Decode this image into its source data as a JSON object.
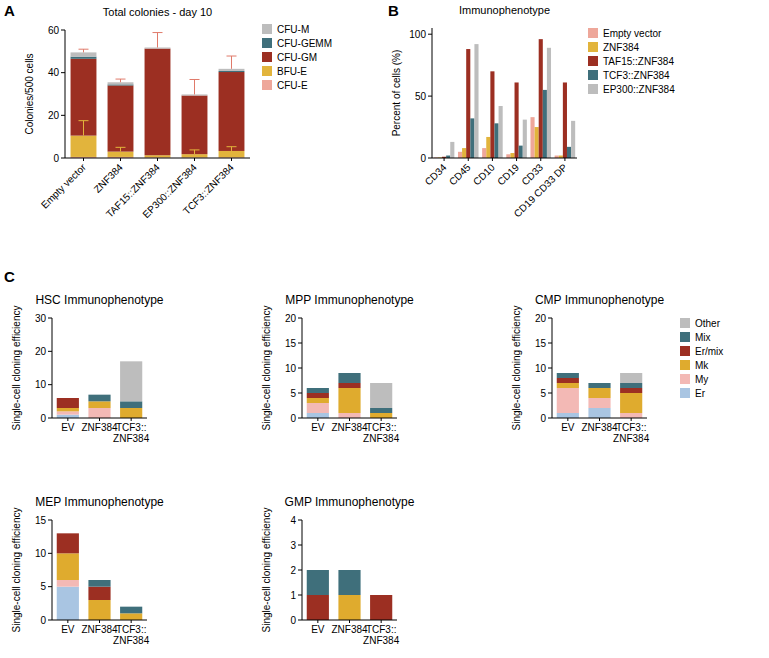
{
  "chart_data": [
    {
      "type": "bar",
      "stacked": true,
      "panel_label": "A",
      "title": "Total colonies - day 10",
      "y_label": "Colonies/500 cells",
      "categories": [
        "Empty vector",
        "ZNF384",
        "TAF15::ZNF384",
        "EP300::ZNF384",
        "TCF3::ZNF384"
      ],
      "ylim": [
        0,
        60
      ],
      "yticks": [
        0,
        20,
        40,
        60
      ],
      "legend": "right",
      "series": [
        {
          "name": "CFU-E",
          "color": "#eea79a",
          "values": [
            0.5,
            0.5,
            0.3,
            0.3,
            0.3
          ]
        },
        {
          "name": "BFU-E",
          "color": "#e2b43c",
          "values": [
            10,
            2.5,
            1,
            1.5,
            3
          ],
          "errors": [
            7,
            2,
            null,
            2,
            2
          ]
        },
        {
          "name": "CFU-GM",
          "color": "#9c2f22",
          "values": [
            36,
            31,
            50,
            27.5,
            37
          ]
        },
        {
          "name": "CFU-GEMM",
          "color": "#3f6f7b",
          "values": [
            1,
            0.5,
            0,
            0,
            0.5
          ]
        },
        {
          "name": "CFU-M",
          "color": "#bdbdbd",
          "values": [
            2,
            1,
            0.5,
            0.5,
            1
          ],
          "errors": [
            1.5,
            1.5,
            7,
            7,
            6
          ]
        }
      ]
    },
    {
      "type": "bar",
      "panel_label": "B",
      "title": "Immunophenotype",
      "y_label": "Percent of cells (%)",
      "categories": [
        "CD34",
        "CD45",
        "CD10",
        "CD19",
        "CD33",
        "CD19 CD33 DP"
      ],
      "ylim": [
        0,
        105
      ],
      "yticks": [
        0,
        50,
        100
      ],
      "legend": "right",
      "series": [
        {
          "name": "Empty vector",
          "color": "#eea79a",
          "values": [
            0.5,
            5,
            8,
            3,
            33,
            2
          ]
        },
        {
          "name": "ZNF384",
          "color": "#e2b43c",
          "values": [
            0.5,
            8,
            17,
            4,
            25,
            2
          ]
        },
        {
          "name": "TAF15::ZNF384",
          "color": "#9c2f22",
          "values": [
            1,
            88,
            70,
            61,
            96,
            61
          ]
        },
        {
          "name": "TCF3::ZNF384",
          "color": "#3f6f7b",
          "values": [
            2,
            32,
            28,
            10,
            55,
            9
          ]
        },
        {
          "name": "EP300::ZNF384",
          "color": "#bdbdbd",
          "values": [
            13,
            92,
            42,
            31,
            89,
            30
          ]
        }
      ]
    },
    {
      "type": "bar",
      "stacked": true,
      "panel_label": "C",
      "title": "HSC Immunophenotype",
      "y_label": "Single-cell cloning efficiency",
      "categories": [
        "EV",
        "ZNF384",
        "TCF3::ZNF384"
      ],
      "ylim": [
        0,
        30
      ],
      "yticks": [
        0,
        10,
        20,
        30
      ],
      "series": [
        {
          "name": "Er",
          "color": "#a9c5e2",
          "values": [
            1,
            0,
            0
          ]
        },
        {
          "name": "My",
          "color": "#f3b9b5",
          "values": [
            1,
            3,
            0
          ]
        },
        {
          "name": "Mk",
          "color": "#dfab2e",
          "values": [
            1,
            2,
            3
          ]
        },
        {
          "name": "Er/mix",
          "color": "#9c2f22",
          "values": [
            3,
            0,
            0
          ]
        },
        {
          "name": "Mix",
          "color": "#3f6f7b",
          "values": [
            0,
            2,
            2
          ]
        },
        {
          "name": "Other",
          "color": "#bdbdbd",
          "values": [
            0,
            0,
            12
          ]
        }
      ]
    },
    {
      "type": "bar",
      "stacked": true,
      "title": "MPP Immunophenotype",
      "y_label": "Single-cell cloning efficiency",
      "categories": [
        "EV",
        "ZNF384",
        "TCF3::ZNF384"
      ],
      "ylim": [
        0,
        20
      ],
      "yticks": [
        0,
        5,
        10,
        15,
        20
      ],
      "series": [
        {
          "name": "Er",
          "color": "#a9c5e2",
          "values": [
            1,
            0,
            0
          ]
        },
        {
          "name": "My",
          "color": "#f3b9b5",
          "values": [
            2,
            1,
            0
          ]
        },
        {
          "name": "Mk",
          "color": "#dfab2e",
          "values": [
            1,
            5,
            1
          ]
        },
        {
          "name": "Er/mix",
          "color": "#9c2f22",
          "values": [
            1,
            1,
            0
          ]
        },
        {
          "name": "Mix",
          "color": "#3f6f7b",
          "values": [
            1,
            2,
            1
          ]
        },
        {
          "name": "Other",
          "color": "#bdbdbd",
          "values": [
            0,
            0,
            5
          ]
        }
      ]
    },
    {
      "type": "bar",
      "stacked": true,
      "title": "CMP Immunophenotype",
      "y_label": "Single-cell cloning efficiency",
      "categories": [
        "EV",
        "ZNF384",
        "TCF3::ZNF384"
      ],
      "ylim": [
        0,
        20
      ],
      "yticks": [
        0,
        5,
        10,
        15,
        20
      ],
      "legend": "right",
      "series": [
        {
          "name": "Er",
          "color": "#a9c5e2",
          "values": [
            1,
            2,
            0
          ]
        },
        {
          "name": "My",
          "color": "#f3b9b5",
          "values": [
            5,
            2,
            1
          ]
        },
        {
          "name": "Mk",
          "color": "#dfab2e",
          "values": [
            1,
            2,
            4
          ]
        },
        {
          "name": "Er/mix",
          "color": "#9c2f22",
          "values": [
            1,
            0,
            1
          ]
        },
        {
          "name": "Mix",
          "color": "#3f6f7b",
          "values": [
            1,
            1,
            1
          ]
        },
        {
          "name": "Other",
          "color": "#bdbdbd",
          "values": [
            0,
            0,
            2
          ]
        }
      ]
    },
    {
      "type": "bar",
      "stacked": true,
      "title": "MEP Immunophenotype",
      "y_label": "Single-cell cloning efficiency",
      "categories": [
        "EV",
        "ZNF384",
        "TCF3::ZNF384"
      ],
      "ylim": [
        0,
        15
      ],
      "yticks": [
        0,
        5,
        10,
        15
      ],
      "series": [
        {
          "name": "Er",
          "color": "#a9c5e2",
          "values": [
            5,
            0,
            0
          ]
        },
        {
          "name": "My",
          "color": "#f3b9b5",
          "values": [
            1,
            0,
            0
          ]
        },
        {
          "name": "Mk",
          "color": "#dfab2e",
          "values": [
            4,
            3,
            1
          ]
        },
        {
          "name": "Er/mix",
          "color": "#9c2f22",
          "values": [
            3,
            2,
            0
          ]
        },
        {
          "name": "Mix",
          "color": "#3f6f7b",
          "values": [
            0,
            1,
            1
          ]
        },
        {
          "name": "Other",
          "color": "#bdbdbd",
          "values": [
            0,
            0,
            0
          ]
        }
      ]
    },
    {
      "type": "bar",
      "stacked": true,
      "title": "GMP Immunophenotype",
      "y_label": "Single-cell cloning efficiency",
      "categories": [
        "EV",
        "ZNF384",
        "TCF3::ZNF384"
      ],
      "ylim": [
        0,
        4
      ],
      "yticks": [
        0,
        1,
        2,
        3,
        4
      ],
      "series": [
        {
          "name": "Er",
          "color": "#a9c5e2",
          "values": [
            0,
            0,
            0
          ]
        },
        {
          "name": "My",
          "color": "#f3b9b5",
          "values": [
            0,
            0,
            0
          ]
        },
        {
          "name": "Mk",
          "color": "#dfab2e",
          "values": [
            0,
            1,
            0
          ]
        },
        {
          "name": "Er/mix",
          "color": "#9c2f22",
          "values": [
            1,
            0,
            1
          ]
        },
        {
          "name": "Mix",
          "color": "#3f6f7b",
          "values": [
            1,
            1,
            0
          ]
        },
        {
          "name": "Other",
          "color": "#bdbdbd",
          "values": [
            0,
            0,
            0
          ]
        }
      ]
    }
  ]
}
